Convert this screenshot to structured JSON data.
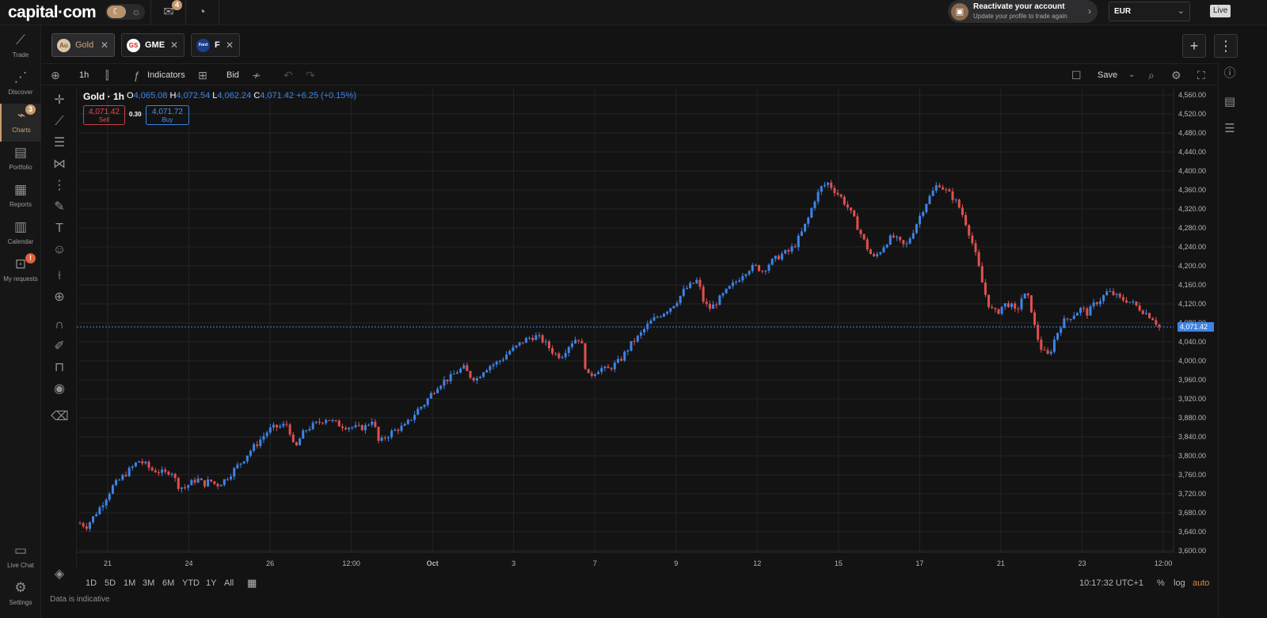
{
  "topbar": {
    "logo": "capital·com",
    "notifications_count": "4",
    "reactivate_title": "Reactivate your account",
    "reactivate_subtitle": "Update your profile to trade again",
    "currency": "EUR",
    "mode": "Live"
  },
  "sidebar": {
    "items": [
      {
        "label": "Trade",
        "icon": "trend-icon"
      },
      {
        "label": "Discover",
        "icon": "network-icon"
      },
      {
        "label": "Charts",
        "icon": "chart-icon",
        "badge": "3"
      },
      {
        "label": "Portfolio",
        "icon": "briefcase-icon"
      },
      {
        "label": "Reports",
        "icon": "report-icon"
      },
      {
        "label": "Calendar",
        "icon": "calendar-icon"
      },
      {
        "label": "My requests",
        "icon": "requests-icon",
        "badge": "!"
      }
    ],
    "bottom": [
      {
        "label": "Live Chat",
        "icon": "chat-icon"
      },
      {
        "label": "Settings",
        "icon": "gear-icon"
      }
    ]
  },
  "tabs": [
    {
      "name": "Gold",
      "logo": "Au"
    },
    {
      "name": "GME",
      "logo": "GS"
    },
    {
      "name": "F",
      "logo": "Ford"
    }
  ],
  "toolbar": {
    "interval": "1h",
    "indicators": "Indicators",
    "price_side": "Bid",
    "save": "Save"
  },
  "legend": {
    "title": "Gold · 1h",
    "o_label": "O",
    "o": "4,065.08",
    "h_label": "H",
    "h": "4,072.54",
    "l_label": "L",
    "l": "4,062.24",
    "c_label": "C",
    "c": "4,071.42",
    "change": "+6.25 (+0.15%)",
    "sell_price": "4,071.42",
    "sell_label": "Sell",
    "spread": "0.30",
    "buy_price": "4,071.72",
    "buy_label": "Buy"
  },
  "bottom": {
    "ranges": [
      "1D",
      "5D",
      "1M",
      "3M",
      "6M",
      "YTD",
      "1Y",
      "All"
    ],
    "time": "10:17:32 UTC+1",
    "percent": "%",
    "log": "log",
    "auto": "auto",
    "note": "Data is indicative"
  },
  "chart_data": {
    "type": "candlestick",
    "instrument": "Gold",
    "interval": "1h",
    "current_price": 4071.42,
    "current_price_label": "4,071.42",
    "ylim": [
      3600,
      4560
    ],
    "y_ticks": [
      "3,600.00",
      "3,640.00",
      "3,680.00",
      "3,720.00",
      "3,760.00",
      "3,800.00",
      "3,840.00",
      "3,880.00",
      "3,920.00",
      "3,960.00",
      "4,000.00",
      "4,040.00",
      "4,080.00",
      "4,120.00",
      "4,160.00",
      "4,200.00",
      "4,240.00",
      "4,280.00",
      "4,320.00",
      "4,360.00",
      "4,400.00",
      "4,440.00",
      "4,480.00",
      "4,520.00",
      "4,560.00"
    ],
    "x_ticks": [
      "21",
      "24",
      "26",
      "12:00",
      "Oct",
      "3",
      "7",
      "9",
      "12",
      "15",
      "17",
      "21",
      "23",
      "12:00"
    ],
    "colors": {
      "up": "#3d84e6",
      "down": "#e0504e",
      "grid": "#242426",
      "price_line": "#3d84e6"
    },
    "price_path": [
      3658,
      3652,
      3670,
      3690,
      3712,
      3735,
      3748,
      3762,
      3775,
      3790,
      3782,
      3770,
      3768,
      3762,
      3770,
      3738,
      3732,
      3742,
      3752,
      3740,
      3748,
      3738,
      3746,
      3760,
      3775,
      3790,
      3808,
      3822,
      3838,
      3854,
      3860,
      3862,
      3868,
      3810,
      3842,
      3858,
      3865,
      3872,
      3880,
      3870,
      3865,
      3862,
      3860,
      3858,
      3862,
      3878,
      3826,
      3840,
      3850,
      3858,
      3862,
      3880,
      3898,
      3910,
      3930,
      3948,
      3958,
      3965,
      3978,
      3985,
      3968,
      3962,
      3980,
      3990,
      3995,
      4005,
      4020,
      4028,
      4040,
      4048,
      4052,
      4045,
      4030,
      4015,
      4010,
      4030,
      4045,
      4048,
      3965,
      3975,
      3985,
      3980,
      3990,
      4000,
      4020,
      4040,
      4052,
      4070,
      4085,
      4095,
      4105,
      4115,
      4130,
      4150,
      4160,
      4170,
      4120,
      4110,
      4125,
      4140,
      4155,
      4168,
      4185,
      4195,
      4198,
      4190,
      4205,
      4215,
      4225,
      4230,
      4245,
      4270,
      4300,
      4340,
      4365,
      4375,
      4360,
      4345,
      4325,
      4300,
      4270,
      4240,
      4215,
      4230,
      4250,
      4262,
      4250,
      4240,
      4270,
      4300,
      4330,
      4352,
      4375,
      4360,
      4348,
      4330,
      4300,
      4260,
      4210,
      4150,
      4110,
      4100,
      4118,
      4120,
      4100,
      4140,
      4130,
      4060,
      4020,
      4010,
      4050,
      4080,
      4090,
      4100,
      4110,
      4100,
      4120,
      4130,
      4145,
      4140,
      4130,
      4128,
      4120,
      4110,
      4100,
      4090,
      4071
    ]
  }
}
